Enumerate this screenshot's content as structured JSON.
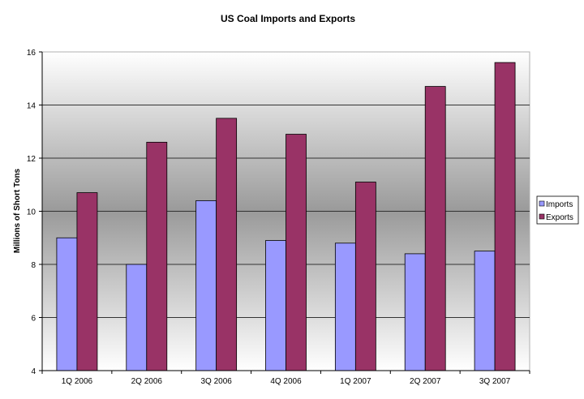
{
  "chart_data": {
    "type": "bar",
    "title": "US Coal Imports and Exports",
    "xlabel": "",
    "ylabel": "Millions of Short Tons",
    "ylim": [
      4,
      16
    ],
    "yticks": [
      4,
      6,
      8,
      10,
      12,
      14,
      16
    ],
    "grid": true,
    "legend_position": "right",
    "categories": [
      "1Q 2006",
      "2Q 2006",
      "3Q 2006",
      "4Q 2006",
      "1Q 2007",
      "2Q 2007",
      "3Q 2007"
    ],
    "series": [
      {
        "name": "Imports",
        "color": "#9999ff",
        "values": [
          9.0,
          8.0,
          10.4,
          8.9,
          8.8,
          8.4,
          8.5
        ]
      },
      {
        "name": "Exports",
        "color": "#993366",
        "values": [
          10.7,
          12.6,
          13.5,
          12.9,
          11.1,
          14.7,
          15.6
        ]
      }
    ]
  }
}
